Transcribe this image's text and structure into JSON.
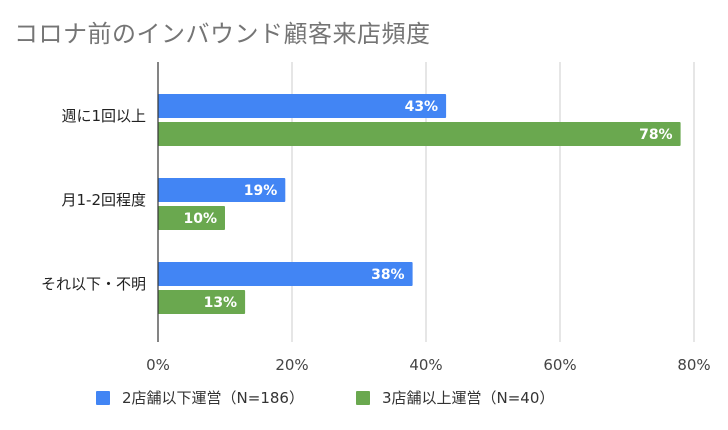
{
  "chart_data": {
    "type": "bar",
    "orientation": "horizontal",
    "title": "コロナ前のインバウンド顧客来店頻度",
    "categories": [
      "週に1回以上",
      "月1-2回程度",
      "それ以下・不明"
    ],
    "series": [
      {
        "name": "2店舗以下運営（N=186）",
        "values": [
          43,
          19,
          38
        ],
        "labels": [
          "43%",
          "19%",
          "38%"
        ],
        "color": "#4285f4"
      },
      {
        "name": "3店舗以上運営（N=40）",
        "values": [
          78,
          10,
          13
        ],
        "labels": [
          "78%",
          "10%",
          "13%"
        ],
        "color": "#6aa84f"
      }
    ],
    "xlim": [
      0,
      80
    ],
    "xticks": [
      0,
      20,
      40,
      60,
      80
    ],
    "xtick_labels": [
      "0%",
      "20%",
      "40%",
      "60%",
      "80%"
    ],
    "grid": true,
    "legend": "bottom"
  }
}
